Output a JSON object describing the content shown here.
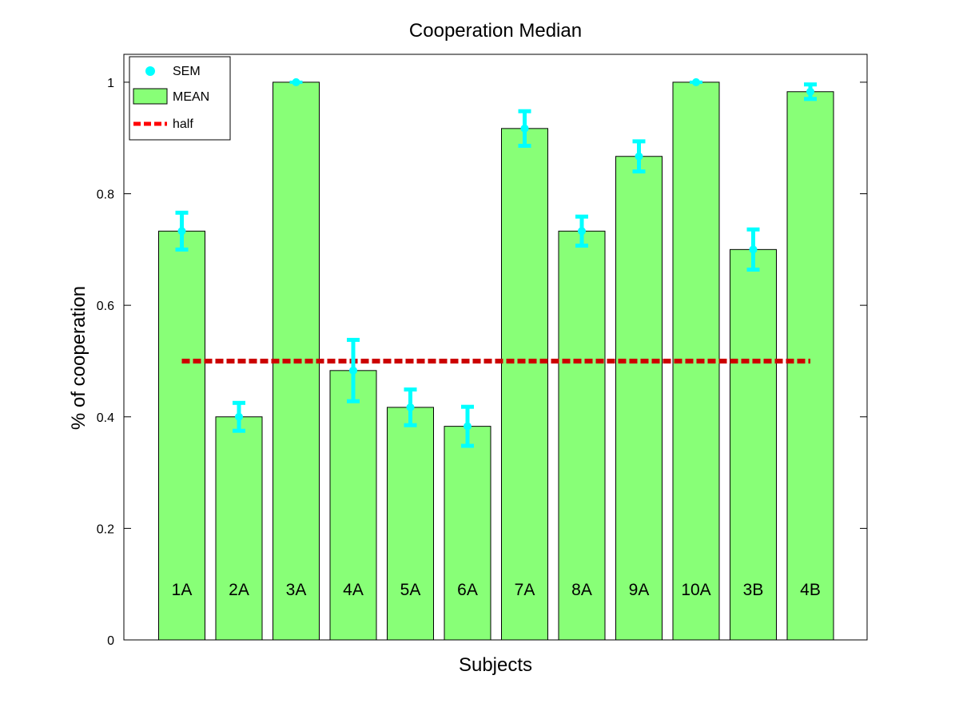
{
  "chart_data": {
    "type": "bar",
    "title": "Cooperation Median",
    "xlabel": "Subjects",
    "ylabel": "% of cooperation",
    "ylim": [
      0,
      1.05
    ],
    "yticks": [
      "0",
      "0.2",
      "0.4",
      "0.6",
      "0.8",
      "1"
    ],
    "yticks_values": [
      0,
      0.2,
      0.4,
      0.6,
      0.8,
      1
    ],
    "categories": [
      "1A",
      "2A",
      "3A",
      "4A",
      "5A",
      "6A",
      "7A",
      "8A",
      "9A",
      "10A",
      "3B",
      "4B"
    ],
    "series": [
      {
        "name": "MEAN",
        "values": [
          0.733,
          0.4,
          1.0,
          0.483,
          0.417,
          0.383,
          0.917,
          0.733,
          0.867,
          1.0,
          0.7,
          0.983
        ],
        "color": "#88ff77"
      }
    ],
    "error_bars": {
      "name": "SEM",
      "center": [
        0.733,
        0.4,
        1.0,
        0.483,
        0.417,
        0.383,
        0.917,
        0.733,
        0.867,
        1.0,
        0.7,
        0.983
      ],
      "sem": [
        0.033,
        0.025,
        0.0,
        0.055,
        0.032,
        0.035,
        0.031,
        0.026,
        0.027,
        0.0,
        0.036,
        0.013
      ],
      "color": "#00ffff"
    },
    "reference_line": {
      "name": "half",
      "value": 0.5,
      "style": "dashed",
      "color": "#ff0000"
    },
    "legend": {
      "position": "top-left",
      "entries": [
        {
          "label": "SEM",
          "marker": "circle",
          "color": "#00ffff"
        },
        {
          "label": "MEAN",
          "marker": "bar",
          "color": "#88ff77"
        },
        {
          "label": "half",
          "marker": "dashed-line",
          "color": "#ff0000"
        }
      ]
    },
    "grid": false
  }
}
